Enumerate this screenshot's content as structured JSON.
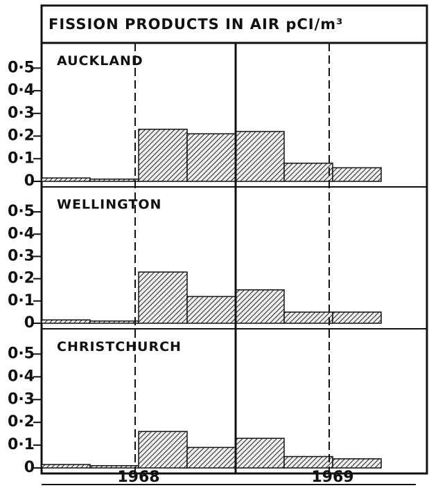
{
  "title": "FISSION PRODUCTS IN AIR pCI/m³",
  "chart_data": [
    {
      "type": "histogram",
      "title": "AUCKLAND",
      "bins": [
        1968,
        1968.25,
        1968.5,
        1968.75,
        1969,
        1969.25,
        1969.5,
        1969.75
      ],
      "values": [
        0.015,
        0.01,
        0.23,
        0.21,
        0.22,
        0.08,
        0.06
      ],
      "xlim": [
        1968,
        1970
      ],
      "ylim": [
        0,
        0.55
      ],
      "yticks": [
        {
          "value": 0,
          "label": "0"
        },
        {
          "value": 0.1,
          "label": "0·1"
        },
        {
          "value": 0.2,
          "label": "0·2"
        },
        {
          "value": 0.3,
          "label": "0·3"
        },
        {
          "value": 0.4,
          "label": "0·4"
        },
        {
          "value": 0.5,
          "label": "0·5"
        }
      ]
    },
    {
      "type": "histogram",
      "title": "WELLINGTON",
      "bins": [
        1968,
        1968.25,
        1968.5,
        1968.75,
        1969,
        1969.25,
        1969.5,
        1969.75
      ],
      "values": [
        0.015,
        0.01,
        0.23,
        0.12,
        0.15,
        0.05,
        0.05
      ],
      "xlim": [
        1968,
        1970
      ],
      "ylim": [
        0,
        0.55
      ],
      "yticks": [
        {
          "value": 0,
          "label": "0"
        },
        {
          "value": 0.1,
          "label": "0·1"
        },
        {
          "value": 0.2,
          "label": "0·2"
        },
        {
          "value": 0.3,
          "label": "0·3"
        },
        {
          "value": 0.4,
          "label": "0·4"
        },
        {
          "value": 0.5,
          "label": "0·5"
        }
      ]
    },
    {
      "type": "histogram",
      "title": "CHRISTCHURCH",
      "bins": [
        1968,
        1968.25,
        1968.5,
        1968.75,
        1969,
        1969.25,
        1969.5,
        1969.75
      ],
      "values": [
        0.015,
        0.01,
        0.16,
        0.09,
        0.13,
        0.05,
        0.04
      ],
      "xlim": [
        1968,
        1970
      ],
      "ylim": [
        0,
        0.55
      ],
      "yticks": [
        {
          "value": 0,
          "label": "0"
        },
        {
          "value": 0.1,
          "label": "0·1"
        },
        {
          "value": 0.2,
          "label": "0·2"
        },
        {
          "value": 0.3,
          "label": "0·3"
        },
        {
          "value": 0.4,
          "label": "0·4"
        },
        {
          "value": 0.5,
          "label": "0·5"
        }
      ],
      "xticks": [
        {
          "value": 1968.5,
          "label": "1968"
        },
        {
          "value": 1969.5,
          "label": "1969"
        }
      ]
    }
  ]
}
